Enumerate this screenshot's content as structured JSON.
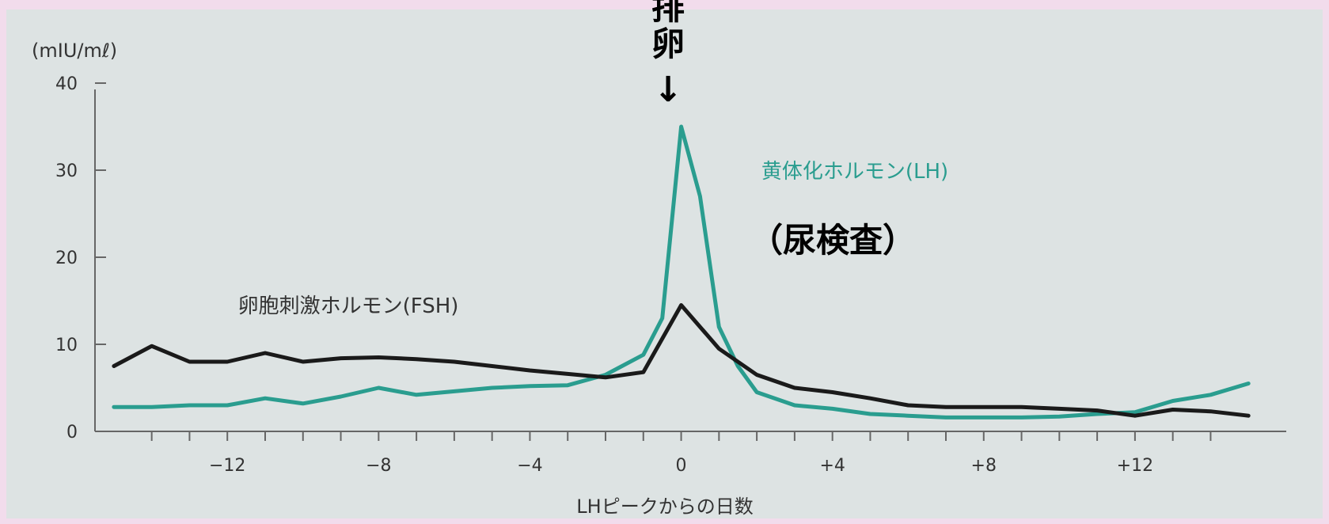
{
  "chart_data": {
    "type": "line",
    "ylabel": "(mIU/mℓ)",
    "xlabel": "LHピークからの日数",
    "xlim": [
      -15.5,
      16
    ],
    "ylim": [
      0,
      42
    ],
    "x_ticks": [
      -14,
      -13,
      -12,
      -11,
      -10,
      -9,
      -8,
      -7,
      -6,
      -5,
      -4,
      -3,
      -2,
      -1,
      0,
      1,
      2,
      3,
      4,
      5,
      6,
      7,
      8,
      9,
      10,
      11,
      12,
      13,
      14
    ],
    "x_tick_labels": [
      {
        "value": -12,
        "label": "−12"
      },
      {
        "value": -8,
        "label": "−8"
      },
      {
        "value": -4,
        "label": "−4"
      },
      {
        "value": 0,
        "label": "0"
      },
      {
        "value": 4,
        "label": "+4"
      },
      {
        "value": 8,
        "label": "+8"
      },
      {
        "value": 12,
        "label": "+12"
      }
    ],
    "y_ticks": [
      {
        "value": 0,
        "label": "0"
      },
      {
        "value": 10,
        "label": "10"
      },
      {
        "value": 20,
        "label": "20"
      },
      {
        "value": 30,
        "label": "30"
      },
      {
        "value": 40,
        "label": "40"
      }
    ],
    "series": [
      {
        "name": "黄体化ホルモン(LH)",
        "color": "#2a9d8f",
        "points": [
          [
            -15,
            2.8
          ],
          [
            -14,
            2.8
          ],
          [
            -13,
            3
          ],
          [
            -12,
            3
          ],
          [
            -11,
            3.8
          ],
          [
            -10,
            3.2
          ],
          [
            -9,
            4
          ],
          [
            -8,
            5
          ],
          [
            -7,
            4.2
          ],
          [
            -6,
            4.6
          ],
          [
            -5,
            5
          ],
          [
            -4,
            5.2
          ],
          [
            -3,
            5.3
          ],
          [
            -2,
            6.5
          ],
          [
            -1,
            8.8
          ],
          [
            -0.5,
            13
          ],
          [
            0,
            35
          ],
          [
            0.5,
            27
          ],
          [
            1,
            12
          ],
          [
            1.5,
            7.5
          ],
          [
            2,
            4.5
          ],
          [
            3,
            3
          ],
          [
            4,
            2.6
          ],
          [
            5,
            2
          ],
          [
            6,
            1.8
          ],
          [
            7,
            1.6
          ],
          [
            8,
            1.6
          ],
          [
            9,
            1.6
          ],
          [
            10,
            1.7
          ],
          [
            11,
            2
          ],
          [
            12,
            2.2
          ],
          [
            13,
            3.5
          ],
          [
            14,
            4.2
          ],
          [
            15,
            5.5
          ]
        ]
      },
      {
        "name": "卵胞刺激ホルモン(FSH)",
        "color": "#1a1a1a",
        "points": [
          [
            -15,
            7.5
          ],
          [
            -14,
            9.8
          ],
          [
            -13,
            8
          ],
          [
            -12,
            8
          ],
          [
            -11,
            9
          ],
          [
            -10,
            8
          ],
          [
            -9,
            8.4
          ],
          [
            -8,
            8.5
          ],
          [
            -7,
            8.3
          ],
          [
            -6,
            8
          ],
          [
            -5,
            7.5
          ],
          [
            -4,
            7
          ],
          [
            -3,
            6.6
          ],
          [
            -2,
            6.2
          ],
          [
            -1,
            6.8
          ],
          [
            0,
            14.5
          ],
          [
            1,
            9.5
          ],
          [
            2,
            6.5
          ],
          [
            3,
            5
          ],
          [
            4,
            4.5
          ],
          [
            5,
            3.8
          ],
          [
            6,
            3
          ],
          [
            7,
            2.8
          ],
          [
            8,
            2.8
          ],
          [
            9,
            2.8
          ],
          [
            10,
            2.6
          ],
          [
            11,
            2.4
          ],
          [
            12,
            1.8
          ],
          [
            13,
            2.5
          ],
          [
            14,
            2.3
          ],
          [
            15,
            1.8
          ]
        ]
      }
    ],
    "annotations": {
      "ovulation_label": "排卵",
      "ovulation_arrow": "↓",
      "urine_test": "（尿検査）"
    }
  }
}
